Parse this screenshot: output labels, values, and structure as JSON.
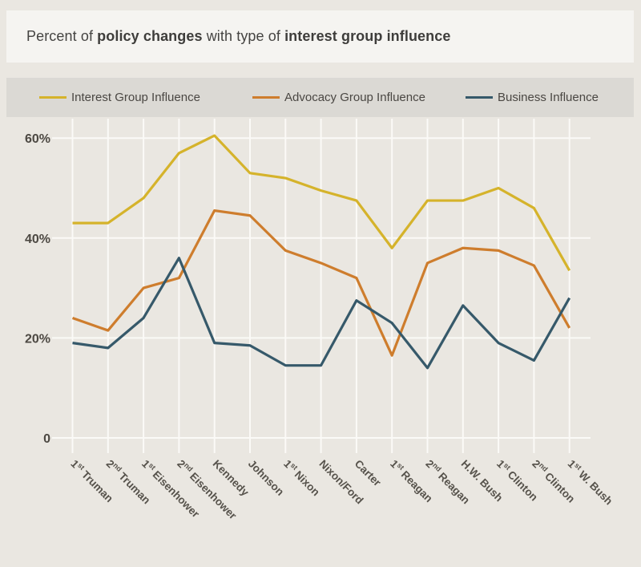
{
  "title": {
    "segments": [
      {
        "text": "Percent of ",
        "bold": false
      },
      {
        "text": "policy changes",
        "bold": true
      },
      {
        "text": " with type of ",
        "bold": false
      },
      {
        "text": "interest group influence",
        "bold": true
      }
    ]
  },
  "legend": {
    "items": [
      {
        "label": "Interest Group Influence",
        "color": "#D5B32B"
      },
      {
        "label": "Advocacy Group Influence",
        "color": "#CE7D2D"
      },
      {
        "label": "Business Influence",
        "color": "#36596A"
      }
    ]
  },
  "chart_data": {
    "type": "line",
    "title": "Percent of policy changes with type of interest group influence",
    "categories": [
      "1st Truman",
      "2nd Truman",
      "1st Eisenhower",
      "2nd Eisenhower",
      "Kennedy",
      "Johnson",
      "1st Nixon",
      "Nixon/Ford",
      "Carter",
      "1st Reagan",
      "2nd Reagan",
      "H.W. Bush",
      "1st Clinton",
      "2nd Clinton",
      "1st W. Bush"
    ],
    "series": [
      {
        "name": "Interest Group Influence",
        "color": "#D5B32B",
        "values": [
          43,
          43,
          48,
          57,
          60.5,
          53,
          52,
          49.5,
          47.5,
          38,
          47.5,
          47.5,
          50,
          46,
          33.5
        ]
      },
      {
        "name": "Advocacy Group Influence",
        "color": "#CE7D2D",
        "values": [
          24,
          21.5,
          30,
          32,
          45.5,
          44.5,
          37.5,
          35,
          32,
          16.5,
          35,
          38,
          37.5,
          34.5,
          22
        ]
      },
      {
        "name": "Business Influence",
        "color": "#36596A",
        "values": [
          19,
          18,
          24,
          36,
          19,
          18.5,
          14.5,
          14.5,
          27.5,
          23,
          14,
          26.5,
          19,
          15.5,
          28
        ]
      }
    ],
    "ylabel": "",
    "xlabel": "",
    "y_ticks": [
      {
        "value": 0,
        "label": "0"
      },
      {
        "value": 20,
        "label": "20%"
      },
      {
        "value": 40,
        "label": "40%"
      },
      {
        "value": 60,
        "label": "60%"
      }
    ],
    "ylim": [
      0,
      64
    ],
    "grid": true,
    "legend_position": "top",
    "x_label_rotation_deg": 45
  },
  "style": {
    "grid_color": "#FBFAF7",
    "axis_text_color": "#4C4842",
    "x_label_color": "#56524B"
  }
}
